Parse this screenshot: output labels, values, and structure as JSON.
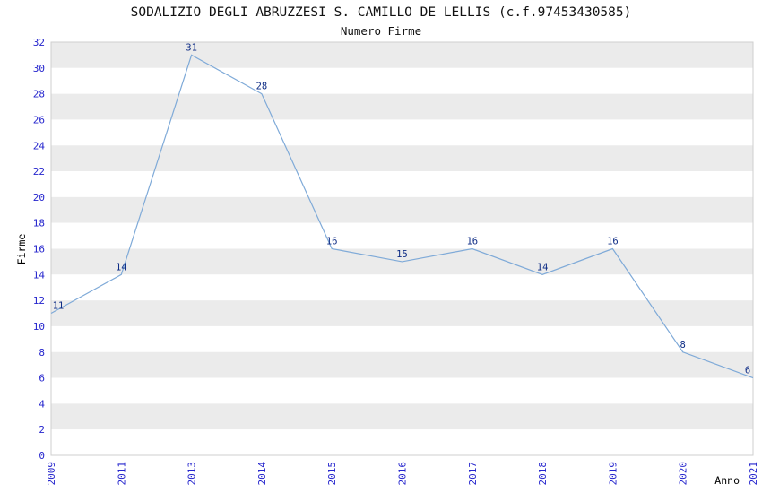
{
  "chart_data": {
    "type": "line",
    "title": "SODALIZIO DEGLI ABRUZZESI S. CAMILLO DE LELLIS (c.f.97453430585)",
    "subtitle": "Numero Firme",
    "xlabel": "Anno",
    "ylabel": "Firme",
    "x": [
      "2009",
      "2011",
      "2013",
      "2014",
      "2015",
      "2016",
      "2017",
      "2018",
      "2019",
      "2020",
      "2021"
    ],
    "values": [
      11,
      14,
      31,
      28,
      16,
      15,
      16,
      14,
      16,
      8,
      6
    ],
    "ylim": [
      0,
      32
    ],
    "ytick_step": 2,
    "grid": "striped-horizontal-bands",
    "legend": "none",
    "colors": {
      "line": "#7faad8",
      "tick_text": "#2525cd",
      "point_label_text": "#0f2d86",
      "band_gray": "#ebebeb",
      "band_white": "#ffffff",
      "plot_border": "#cfcfcf",
      "title_text": "#111111",
      "axis_title_text": "#000000"
    }
  }
}
